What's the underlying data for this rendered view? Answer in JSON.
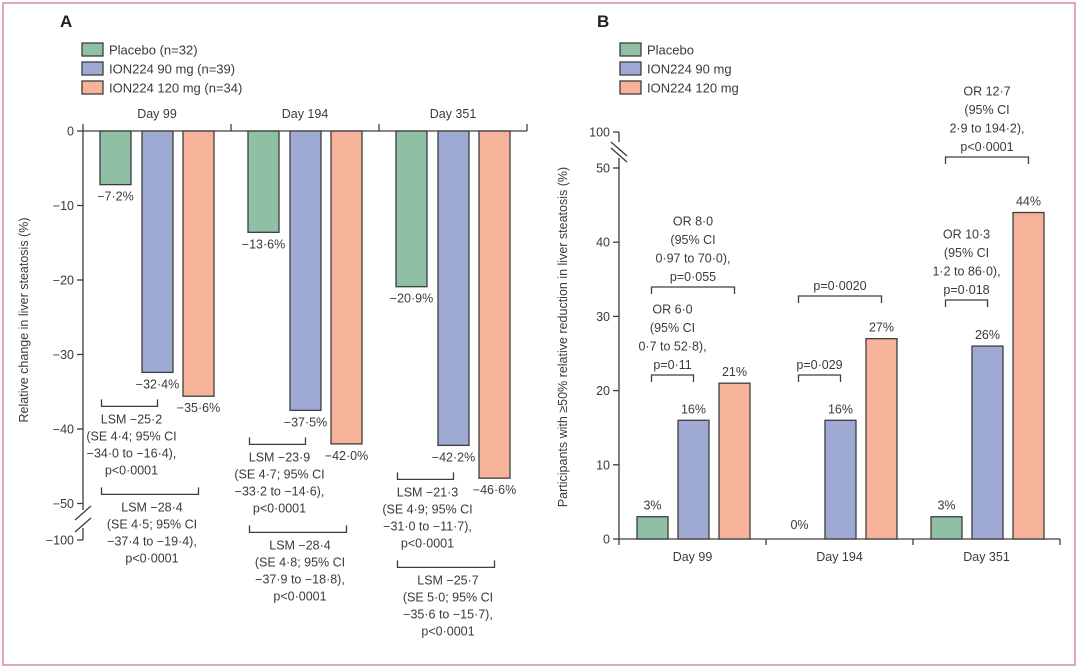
{
  "colors": {
    "placebo": "#8fbfa4",
    "ion90": "#9eaad4",
    "ion120": "#f7b29a",
    "stroke": "#3d3d3d",
    "frame": "#e2a6bd"
  },
  "chart_data": [
    {
      "panel": "A",
      "type": "bar",
      "title": "",
      "xlabel": "",
      "ylabel": "Relative change in liver steatosis (%)",
      "categories": [
        "Day 99",
        "Day 194",
        "Day 351"
      ],
      "category_position": "top",
      "ylim": [
        -100,
        0
      ],
      "axis_break": [
        -50,
        -100
      ],
      "yticks": [
        0,
        -10,
        -20,
        -30,
        -40,
        -50,
        -100
      ],
      "ytick_labels": [
        "0",
        "−10",
        "−20",
        "−30",
        "−40",
        "−50",
        "−100"
      ],
      "legend": [
        "Placebo (n=32)",
        "ION224 90 mg (n=39)",
        "ION224 120 mg (n=34)"
      ],
      "legend_position": "top-left",
      "series": [
        {
          "name": "Placebo (n=32)",
          "key": "placebo",
          "values": [
            -7.2,
            -13.6,
            -20.9
          ],
          "labels": [
            "−7·2%",
            "−13·6%",
            "−20·9%"
          ]
        },
        {
          "name": "ION224 90 mg (n=39)",
          "key": "ion90",
          "values": [
            -32.4,
            -37.5,
            -42.2
          ],
          "labels": [
            "−32·4%",
            "−37·5%",
            "−42·2%"
          ]
        },
        {
          "name": "ION224 120 mg (n=34)",
          "key": "ion120",
          "values": [
            -35.6,
            -42.0,
            -46.6
          ],
          "labels": [
            "−35·6%",
            "−42·0%",
            "−46·6%"
          ]
        }
      ],
      "annotations": [
        {
          "group": 0,
          "from": "placebo",
          "to": "ion90",
          "lines": [
            "LSM −25·2",
            "(SE 4·4; 95% CI",
            "−34·0 to −16·4),",
            "p<0·0001"
          ]
        },
        {
          "group": 0,
          "from": "placebo",
          "to": "ion120",
          "lines": [
            "LSM −28·4",
            "(SE 4·5; 95% CI",
            "−37·4 to −19·4),",
            "p<0·0001"
          ]
        },
        {
          "group": 1,
          "from": "placebo",
          "to": "ion90",
          "lines": [
            "LSM −23·9",
            "(SE 4·7; 95% CI",
            "−33·2 to −14·6),",
            "p<0·0001"
          ]
        },
        {
          "group": 1,
          "from": "placebo",
          "to": "ion120",
          "lines": [
            "LSM −28·4",
            "(SE 4·8; 95% CI",
            "−37·9 to −18·8),",
            "p<0·0001"
          ]
        },
        {
          "group": 2,
          "from": "placebo",
          "to": "ion90",
          "lines": [
            "LSM −21·3",
            "(SE 4·9; 95% CI",
            "−31·0 to −11·7),",
            "p<0·0001"
          ]
        },
        {
          "group": 2,
          "from": "placebo",
          "to": "ion120",
          "lines": [
            "LSM −25·7",
            "(SE 5·0; 95% CI",
            "−35·6 to −15·7),",
            "p<0·0001"
          ]
        }
      ]
    },
    {
      "panel": "B",
      "type": "bar",
      "title": "",
      "xlabel": "",
      "ylabel": "Participants with ≥50% relative reduction in liver steatosis (%)",
      "categories": [
        "Day 99",
        "Day 194",
        "Day 351"
      ],
      "category_position": "bottom",
      "ylim": [
        0,
        100
      ],
      "axis_break": [
        50,
        100
      ],
      "yticks": [
        0,
        10,
        20,
        30,
        40,
        50,
        100
      ],
      "ytick_labels": [
        "0",
        "10",
        "20",
        "30",
        "40",
        "50",
        "100"
      ],
      "legend": [
        "Placebo",
        "ION224 90 mg",
        "ION224 120 mg"
      ],
      "legend_position": "top-left",
      "series": [
        {
          "name": "Placebo",
          "key": "placebo",
          "values": [
            3,
            0,
            3
          ],
          "labels": [
            "3%",
            "0%",
            "3%"
          ]
        },
        {
          "name": "ION224 90 mg",
          "key": "ion90",
          "values": [
            16,
            16,
            26
          ],
          "labels": [
            "16%",
            "16%",
            "26%"
          ]
        },
        {
          "name": "ION224 120 mg",
          "key": "ion120",
          "values": [
            21,
            27,
            44
          ],
          "labels": [
            "21%",
            "27%",
            "44%"
          ]
        }
      ],
      "annotations": [
        {
          "group": 0,
          "from": "placebo",
          "to": "ion90",
          "lines": [
            "OR 6·0",
            "(95% CI",
            "0·7 to 52·8),",
            "p=0·11"
          ]
        },
        {
          "group": 0,
          "from": "placebo",
          "to": "ion120",
          "lines": [
            "OR 8·0",
            "(95% CI",
            "0·97 to 70·0),",
            "p=0·055"
          ]
        },
        {
          "group": 1,
          "from": "placebo",
          "to": "ion90",
          "lines": [
            "p=0·029"
          ]
        },
        {
          "group": 1,
          "from": "placebo",
          "to": "ion120",
          "lines": [
            "p=0·0020"
          ]
        },
        {
          "group": 2,
          "from": "placebo",
          "to": "ion90",
          "lines": [
            "OR 10·3",
            "(95% CI",
            "1·2 to 86·0),",
            "p=0·018"
          ]
        },
        {
          "group": 2,
          "from": "placebo",
          "to": "ion120",
          "lines": [
            "OR 12·7",
            "(95% CI",
            "2·9 to 194·2),",
            "p<0·0001"
          ]
        }
      ]
    }
  ]
}
